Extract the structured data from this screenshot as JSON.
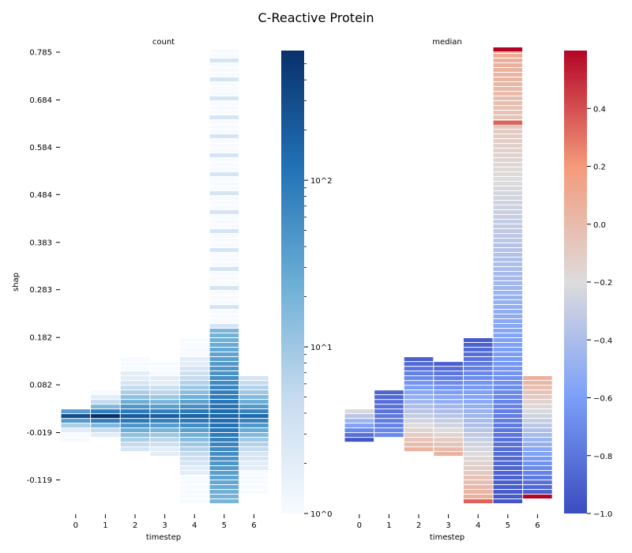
{
  "title": "C-Reactive Protein",
  "chart_data": [
    {
      "type": "heatmap",
      "title": "count",
      "xlabel": "timestep",
      "ylabel": "shap",
      "x_ticks": [
        "0",
        "1",
        "2",
        "3",
        "4",
        "5",
        "6"
      ],
      "y_ticks": [
        "0.785",
        "0.684",
        "0.584",
        "0.484",
        "0.383",
        "0.283",
        "0.182",
        "0.082",
        "-0.019",
        "-0.119"
      ],
      "colormap": "Blues",
      "color_scale": "log",
      "colorbar_range": [
        1,
        600
      ],
      "colorbar_ticks": [
        "10^0",
        "10^1",
        "10^2"
      ],
      "colorbar_tick_values": [
        1,
        10,
        100
      ],
      "column_ranges": [
        {
          "x": 0,
          "ymin": -0.04,
          "ymax": 0.03
        },
        {
          "x": 1,
          "ymin": -0.03,
          "ymax": 0.07
        },
        {
          "x": 2,
          "ymin": -0.06,
          "ymax": 0.14
        },
        {
          "x": 3,
          "ymin": -0.07,
          "ymax": 0.13
        },
        {
          "x": 4,
          "ymin": -0.17,
          "ymax": 0.18
        },
        {
          "x": 5,
          "ymin": -0.17,
          "ymax": 0.785
        },
        {
          "x": 6,
          "ymin": -0.15,
          "ymax": 0.1
        }
      ],
      "peak_cell": {
        "x": 1,
        "shap": 0.0,
        "count_approx": 600
      }
    },
    {
      "type": "heatmap",
      "title": "median",
      "xlabel": "timestep",
      "x_ticks": [
        "0",
        "1",
        "2",
        "3",
        "4",
        "5",
        "6"
      ],
      "colormap": "coolwarm",
      "colorbar_range": [
        -1.0,
        0.6
      ],
      "colorbar_ticks": [
        "0.4",
        "0.2",
        "0.0",
        "−0.2",
        "−0.4",
        "−0.6",
        "−0.8",
        "−1.0"
      ],
      "colorbar_tick_values": [
        0.4,
        0.2,
        0.0,
        -0.2,
        -0.4,
        -0.6,
        -0.8,
        -1.0
      ],
      "column_summary": [
        {
          "x": 0,
          "upper_value": -0.1,
          "lower_value": -0.95
        },
        {
          "x": 1,
          "upper_value": -0.9,
          "lower_value": -0.7
        },
        {
          "x": 2,
          "upper_value": -0.95,
          "lower_value": 0.05
        },
        {
          "x": 3,
          "upper_value": -0.95,
          "lower_value": 0.05
        },
        {
          "x": 4,
          "upper_value": -0.95,
          "lower_value": 0.1
        },
        {
          "x": 5,
          "upper_value": 0.1,
          "lower_value": -0.95
        },
        {
          "x": 6,
          "upper_value": 0.1,
          "lower_value": -0.9
        }
      ],
      "extremes": [
        {
          "x": 5,
          "shap": 0.785,
          "value": 0.6
        },
        {
          "x": 5,
          "shap": 0.63,
          "value": 0.35
        },
        {
          "x": 6,
          "shap": -0.16,
          "value": 0.6
        },
        {
          "x": 4,
          "shap": -0.17,
          "value": 0.35
        }
      ]
    }
  ]
}
